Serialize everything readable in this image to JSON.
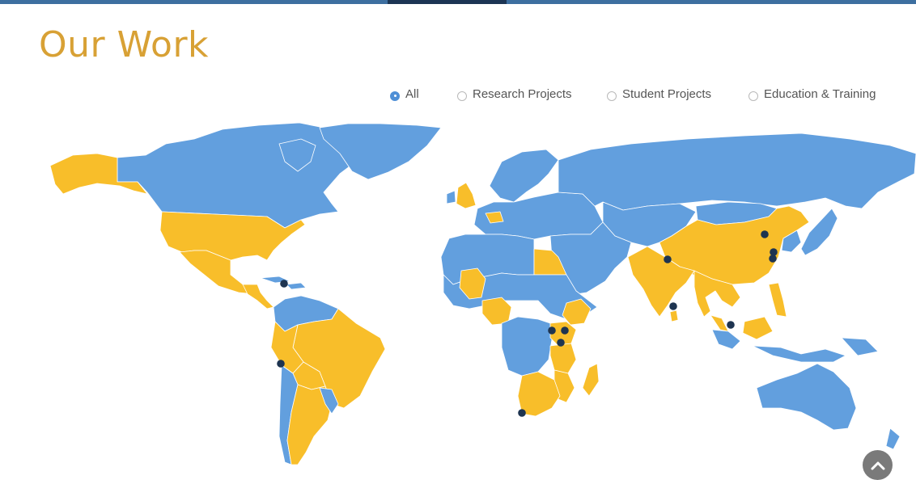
{
  "page": {
    "title": "Our Work"
  },
  "filters": [
    {
      "label": "All",
      "selected": true
    },
    {
      "label": "Research Projects",
      "selected": false
    },
    {
      "label": "Student Projects",
      "selected": false
    },
    {
      "label": "Education & Training",
      "selected": false
    }
  ],
  "map": {
    "colors": {
      "active_country": "#f8be2a",
      "other_country": "#629fde",
      "border": "#ffffff",
      "marker": "#1e3450"
    },
    "active_regions": [
      "Alaska",
      "United States",
      "Mexico",
      "Central America",
      "Peru",
      "Brazil",
      "Bolivia",
      "Argentina",
      "United Kingdom",
      "Egypt",
      "Mali",
      "Nigeria",
      "Ethiopia",
      "Uganda",
      "Kenya",
      "Tanzania",
      "Mozambique",
      "South Africa",
      "Madagascar",
      "India",
      "China",
      "Thailand",
      "Vietnam",
      "Philippines",
      "Malaysia"
    ],
    "project_markers": [
      "Haiti",
      "Peru",
      "Nepal",
      "Northern China",
      "Eastern China",
      "Eastern China",
      "Sri Lanka",
      "Singapore",
      "Uganda",
      "Kenya",
      "Kenya",
      "Tanzania",
      "South Africa"
    ]
  },
  "scroll_top": {
    "icon": "chevron-up-icon",
    "color": "#7a7a7a"
  }
}
